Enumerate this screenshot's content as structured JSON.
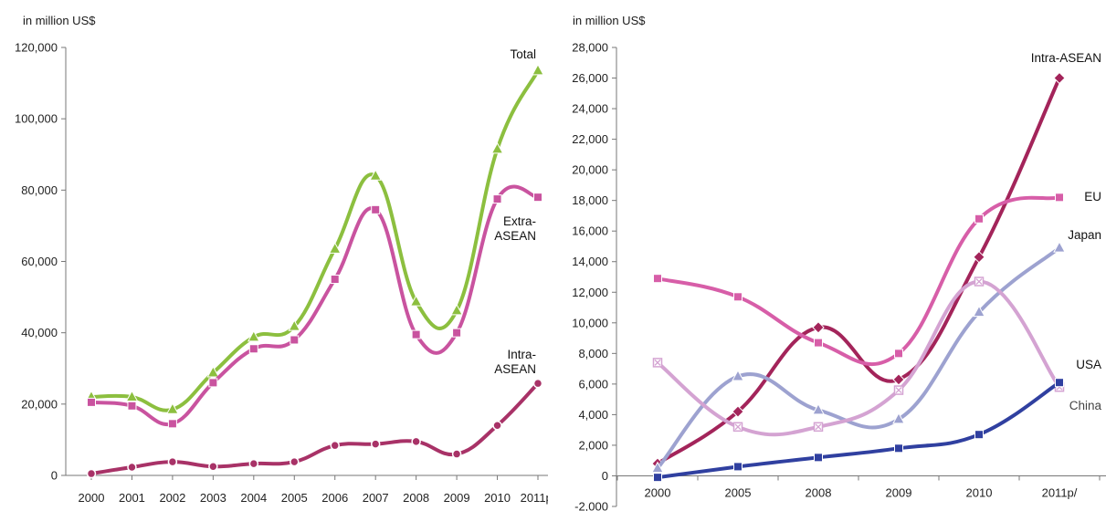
{
  "chart_data": [
    {
      "type": "line",
      "unit_label": "in million US$",
      "categories": [
        "2000",
        "2001",
        "2002",
        "2003",
        "2004",
        "2005",
        "2006",
        "2007",
        "2008",
        "2009",
        "2010",
        "2011p/"
      ],
      "yticks": [
        "0",
        "20,000",
        "40,000",
        "60,000",
        "80,000",
        "100,000",
        "120,000"
      ],
      "ylim": [
        0,
        120000
      ],
      "grid": false,
      "series": [
        {
          "name": "Total",
          "color": "#8cbf3f",
          "marker": "triangle",
          "values": [
            22000,
            22000,
            18500,
            28800,
            38800,
            41800,
            63500,
            84000,
            48700,
            46200,
            91500,
            113500
          ]
        },
        {
          "name": "Extra-ASEAN",
          "color": "#c9539f",
          "marker": "square",
          "values": [
            20500,
            19500,
            14500,
            26000,
            35500,
            38000,
            55000,
            74500,
            39500,
            40000,
            77500,
            78000
          ]
        },
        {
          "name": "Intra-ASEAN",
          "color": "#a83267",
          "marker": "circle",
          "values": [
            500,
            2300,
            3800,
            2500,
            3300,
            3800,
            8400,
            8800,
            9500,
            6000,
            14000,
            25800
          ]
        }
      ],
      "labels": [
        {
          "lines": [
            "Total"
          ],
          "series": "Total"
        },
        {
          "lines": [
            "Extra-",
            "ASEAN"
          ],
          "series": "Extra-ASEAN"
        },
        {
          "lines": [
            "Intra-",
            "ASEAN"
          ],
          "series": "Intra-ASEAN"
        }
      ]
    },
    {
      "type": "line",
      "unit_label": "in million US$",
      "categories": [
        "2000",
        "2005",
        "2008",
        "2009",
        "2010",
        "2011p/"
      ],
      "yticks": [
        "-2,000",
        "0",
        "2,000",
        "4,000",
        "6,000",
        "8,000",
        "10,000",
        "12,000",
        "14,000",
        "16,000",
        "18,000",
        "20,000",
        "22,000",
        "24,000",
        "26,000",
        "28,000"
      ],
      "ylim": [
        -2000,
        28000
      ],
      "grid": false,
      "series": [
        {
          "name": "Intra-ASEAN",
          "color": "#a3245a",
          "marker": "diamond",
          "values": [
            800,
            4200,
            9700,
            6300,
            14300,
            26000
          ]
        },
        {
          "name": "EU",
          "color": "#d75ea8",
          "marker": "square",
          "values": [
            12900,
            11700,
            8700,
            8000,
            16800,
            18200
          ]
        },
        {
          "name": "Japan",
          "color": "#9da2d0",
          "marker": "triangle",
          "values": [
            500,
            6500,
            4300,
            3700,
            10700,
            14900
          ]
        },
        {
          "name": "China",
          "color": "#d4a3d2",
          "marker": "xsquare",
          "values": [
            7400,
            3200,
            3200,
            5600,
            12700,
            5800
          ]
        },
        {
          "name": "USA",
          "color": "#3040a0",
          "marker": "square",
          "values": [
            -100,
            600,
            1200,
            1800,
            2700,
            6100
          ]
        }
      ],
      "labels": [
        {
          "lines": [
            "Intra-ASEAN"
          ],
          "series": "Intra-ASEAN"
        },
        {
          "lines": [
            "EU"
          ],
          "series": "EU"
        },
        {
          "lines": [
            "Japan"
          ],
          "series": "Japan"
        },
        {
          "lines": [
            "USA"
          ],
          "series": "USA"
        },
        {
          "lines": [
            "China"
          ],
          "series": "China"
        }
      ]
    }
  ]
}
